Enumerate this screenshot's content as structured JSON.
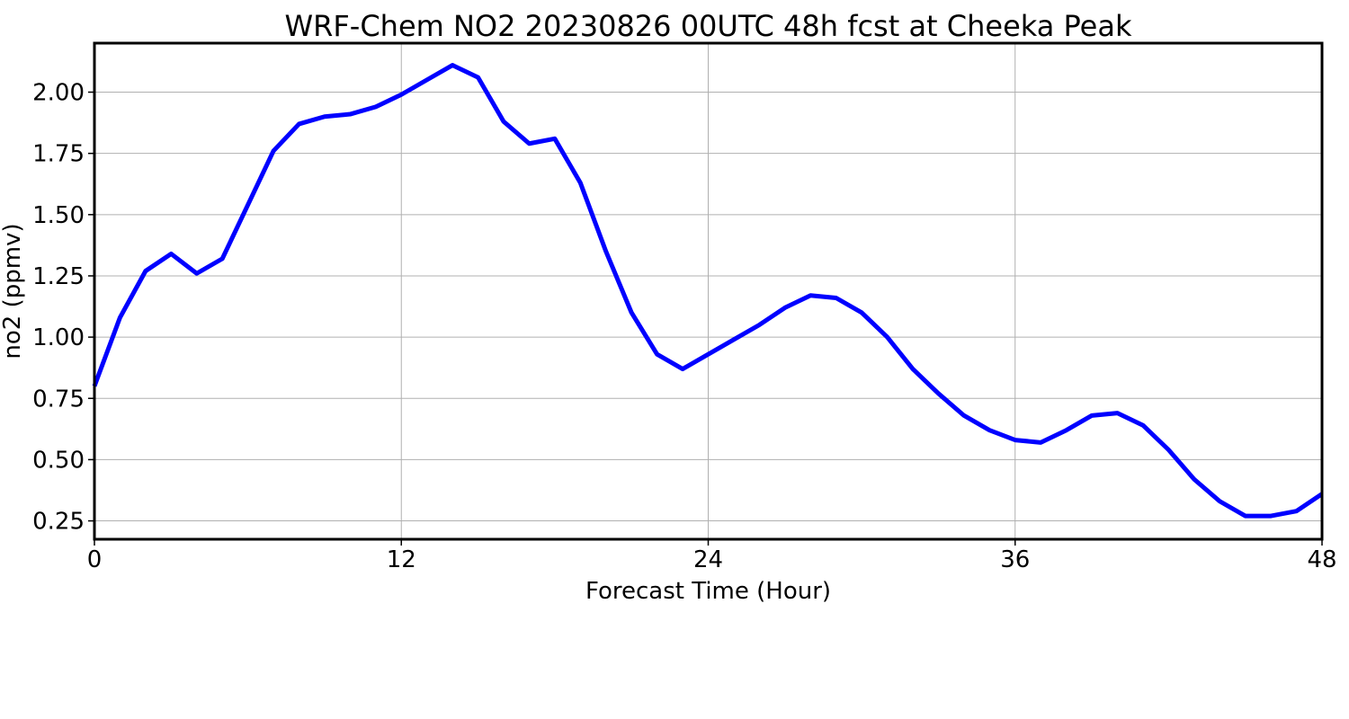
{
  "chart_data": {
    "type": "line",
    "title": "WRF-Chem NO2  20230826 00UTC 48h fcst at Cheeka Peak",
    "xlabel": "Forecast Time (Hour)",
    "ylabel": "no2  (ppmv)",
    "xlim": [
      0,
      48
    ],
    "ylim": [
      0.175,
      2.2
    ],
    "xticks": [
      0,
      12,
      24,
      36,
      48
    ],
    "xtick_labels": [
      "0",
      "12",
      "24",
      "36",
      "48"
    ],
    "yticks": [
      0.25,
      0.5,
      0.75,
      1.0,
      1.25,
      1.5,
      1.75,
      2.0
    ],
    "ytick_labels": [
      "0.25",
      "0.50",
      "0.75",
      "1.00",
      "1.25",
      "1.50",
      "1.75",
      "2.00"
    ],
    "grid": true,
    "series": [
      {
        "color": "#0000ff",
        "x": [
          0,
          1,
          2,
          3,
          4,
          5,
          6,
          7,
          8,
          9,
          10,
          11,
          12,
          13,
          14,
          15,
          16,
          17,
          18,
          19,
          20,
          21,
          22,
          23,
          24,
          25,
          26,
          27,
          28,
          29,
          30,
          31,
          32,
          33,
          34,
          35,
          36,
          37,
          38,
          39,
          40,
          41,
          42,
          43,
          44,
          45,
          46,
          47,
          48
        ],
        "values": [
          0.8,
          1.08,
          1.27,
          1.34,
          1.26,
          1.32,
          1.54,
          1.76,
          1.87,
          1.9,
          1.91,
          1.94,
          1.99,
          2.05,
          2.11,
          2.06,
          1.88,
          1.79,
          1.81,
          1.63,
          1.35,
          1.1,
          0.93,
          0.87,
          0.93,
          0.99,
          1.05,
          1.12,
          1.17,
          1.16,
          1.1,
          1.0,
          0.87,
          0.77,
          0.68,
          0.62,
          0.58,
          0.57,
          0.62,
          0.68,
          0.69,
          0.64,
          0.54,
          0.42,
          0.33,
          0.27,
          0.27,
          0.29,
          0.36
        ]
      }
    ]
  }
}
